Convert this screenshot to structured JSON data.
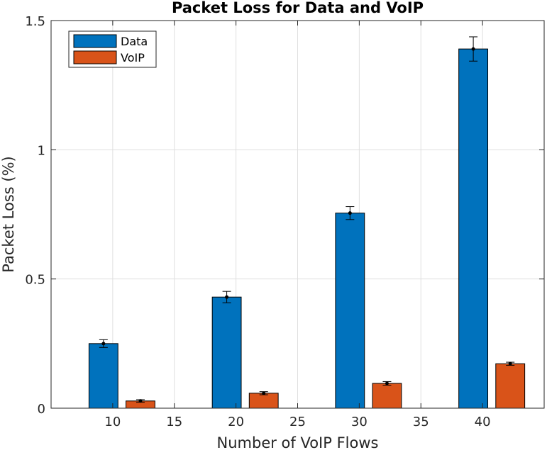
{
  "chart_data": {
    "type": "bar",
    "title": "Packet Loss for Data and VoIP",
    "xlabel": "Number of VoIP Flows",
    "ylabel": "Packet Loss (%)",
    "x": [
      10,
      20,
      30,
      40
    ],
    "xlim": [
      5,
      45
    ],
    "ylim": [
      0,
      1.5
    ],
    "xticks": [
      10,
      15,
      20,
      25,
      30,
      35,
      40
    ],
    "xtick_labels": [
      "10",
      "15",
      "20",
      "25",
      "30",
      "35",
      "40"
    ],
    "yticks": [
      0,
      0.5,
      1,
      1.5
    ],
    "ytick_labels": [
      "0",
      "0.5",
      "1",
      "1.5"
    ],
    "grid": true,
    "legend_position": "top-left",
    "series": [
      {
        "name": "Data",
        "color": "#0072BD",
        "values": [
          0.25,
          0.43,
          0.755,
          1.39
        ],
        "error": [
          0.015,
          0.022,
          0.025,
          0.047
        ]
      },
      {
        "name": "VoIP",
        "color": "#D95319",
        "values": [
          0.028,
          0.058,
          0.096,
          0.172
        ],
        "error": [
          0.005,
          0.006,
          0.007,
          0.006
        ]
      }
    ]
  }
}
